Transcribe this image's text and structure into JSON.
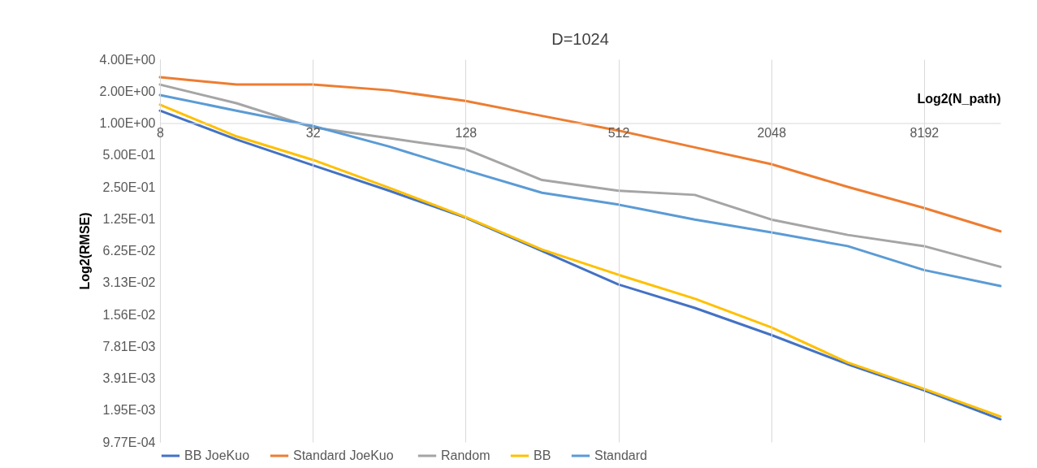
{
  "chart_data": {
    "type": "line",
    "title": "D=1024",
    "xlabel": "Log2(N_path)",
    "ylabel": "Log2(RMSE)",
    "x": [
      8,
      16,
      32,
      64,
      128,
      256,
      512,
      1024,
      2048,
      4096,
      8192,
      16384
    ],
    "series": [
      {
        "name": "BB JoeKuo",
        "color": "#4472c4",
        "values": [
          1.31,
          0.7,
          0.4,
          0.23,
          0.128,
          0.062,
          0.03,
          0.018,
          0.01,
          0.0053,
          0.003,
          0.0016
        ]
      },
      {
        "name": "Standard  JoeKuo",
        "color": "#ed7d31",
        "values": [
          2.71,
          2.31,
          2.31,
          2.04,
          1.62,
          1.17,
          0.85,
          0.59,
          0.41,
          0.25,
          0.158,
          0.095
        ]
      },
      {
        "name": "Random",
        "color": "#a5a5a5",
        "values": [
          2.31,
          1.54,
          0.91,
          0.72,
          0.57,
          0.29,
          0.23,
          0.21,
          0.123,
          0.088,
          0.069,
          0.044
        ]
      },
      {
        "name": "BB",
        "color": "#ffc000",
        "values": [
          1.49,
          0.75,
          0.45,
          0.245,
          0.13,
          0.064,
          0.037,
          0.022,
          0.0118,
          0.0055,
          0.0031,
          0.0017
        ]
      },
      {
        "name": "Standard",
        "color": "#5b9bd5",
        "values": [
          1.84,
          1.31,
          0.94,
          0.6,
          0.36,
          0.22,
          0.17,
          0.123,
          0.093,
          0.069,
          0.041,
          0.029
        ]
      }
    ],
    "log": "xy",
    "xlim": [
      8,
      16384
    ],
    "xticks": [
      8,
      32,
      128,
      512,
      2048,
      8192
    ],
    "ylim": [
      0.0009765625,
      4
    ],
    "yticks": [
      {
        "value": 4,
        "label": "4.00E+00"
      },
      {
        "value": 2,
        "label": "2.00E+00"
      },
      {
        "value": 1,
        "label": "1.00E+00"
      },
      {
        "value": 0.5,
        "label": "5.00E-01"
      },
      {
        "value": 0.25,
        "label": "2.50E-01"
      },
      {
        "value": 0.125,
        "label": "1.25E-01"
      },
      {
        "value": 0.0625,
        "label": "6.25E-02"
      },
      {
        "value": 0.03125,
        "label": "3.13E-02"
      },
      {
        "value": 0.015625,
        "label": "1.56E-02"
      },
      {
        "value": 0.0078125,
        "label": "7.81E-03"
      },
      {
        "value": 0.00390625,
        "label": "3.91E-03"
      },
      {
        "value": 0.001953125,
        "label": "1.95E-03"
      },
      {
        "value": 0.0009765625,
        "label": "9.77E-04"
      }
    ],
    "grid": "x",
    "legend": "bottom",
    "marker": "none",
    "line_style": "solid"
  }
}
